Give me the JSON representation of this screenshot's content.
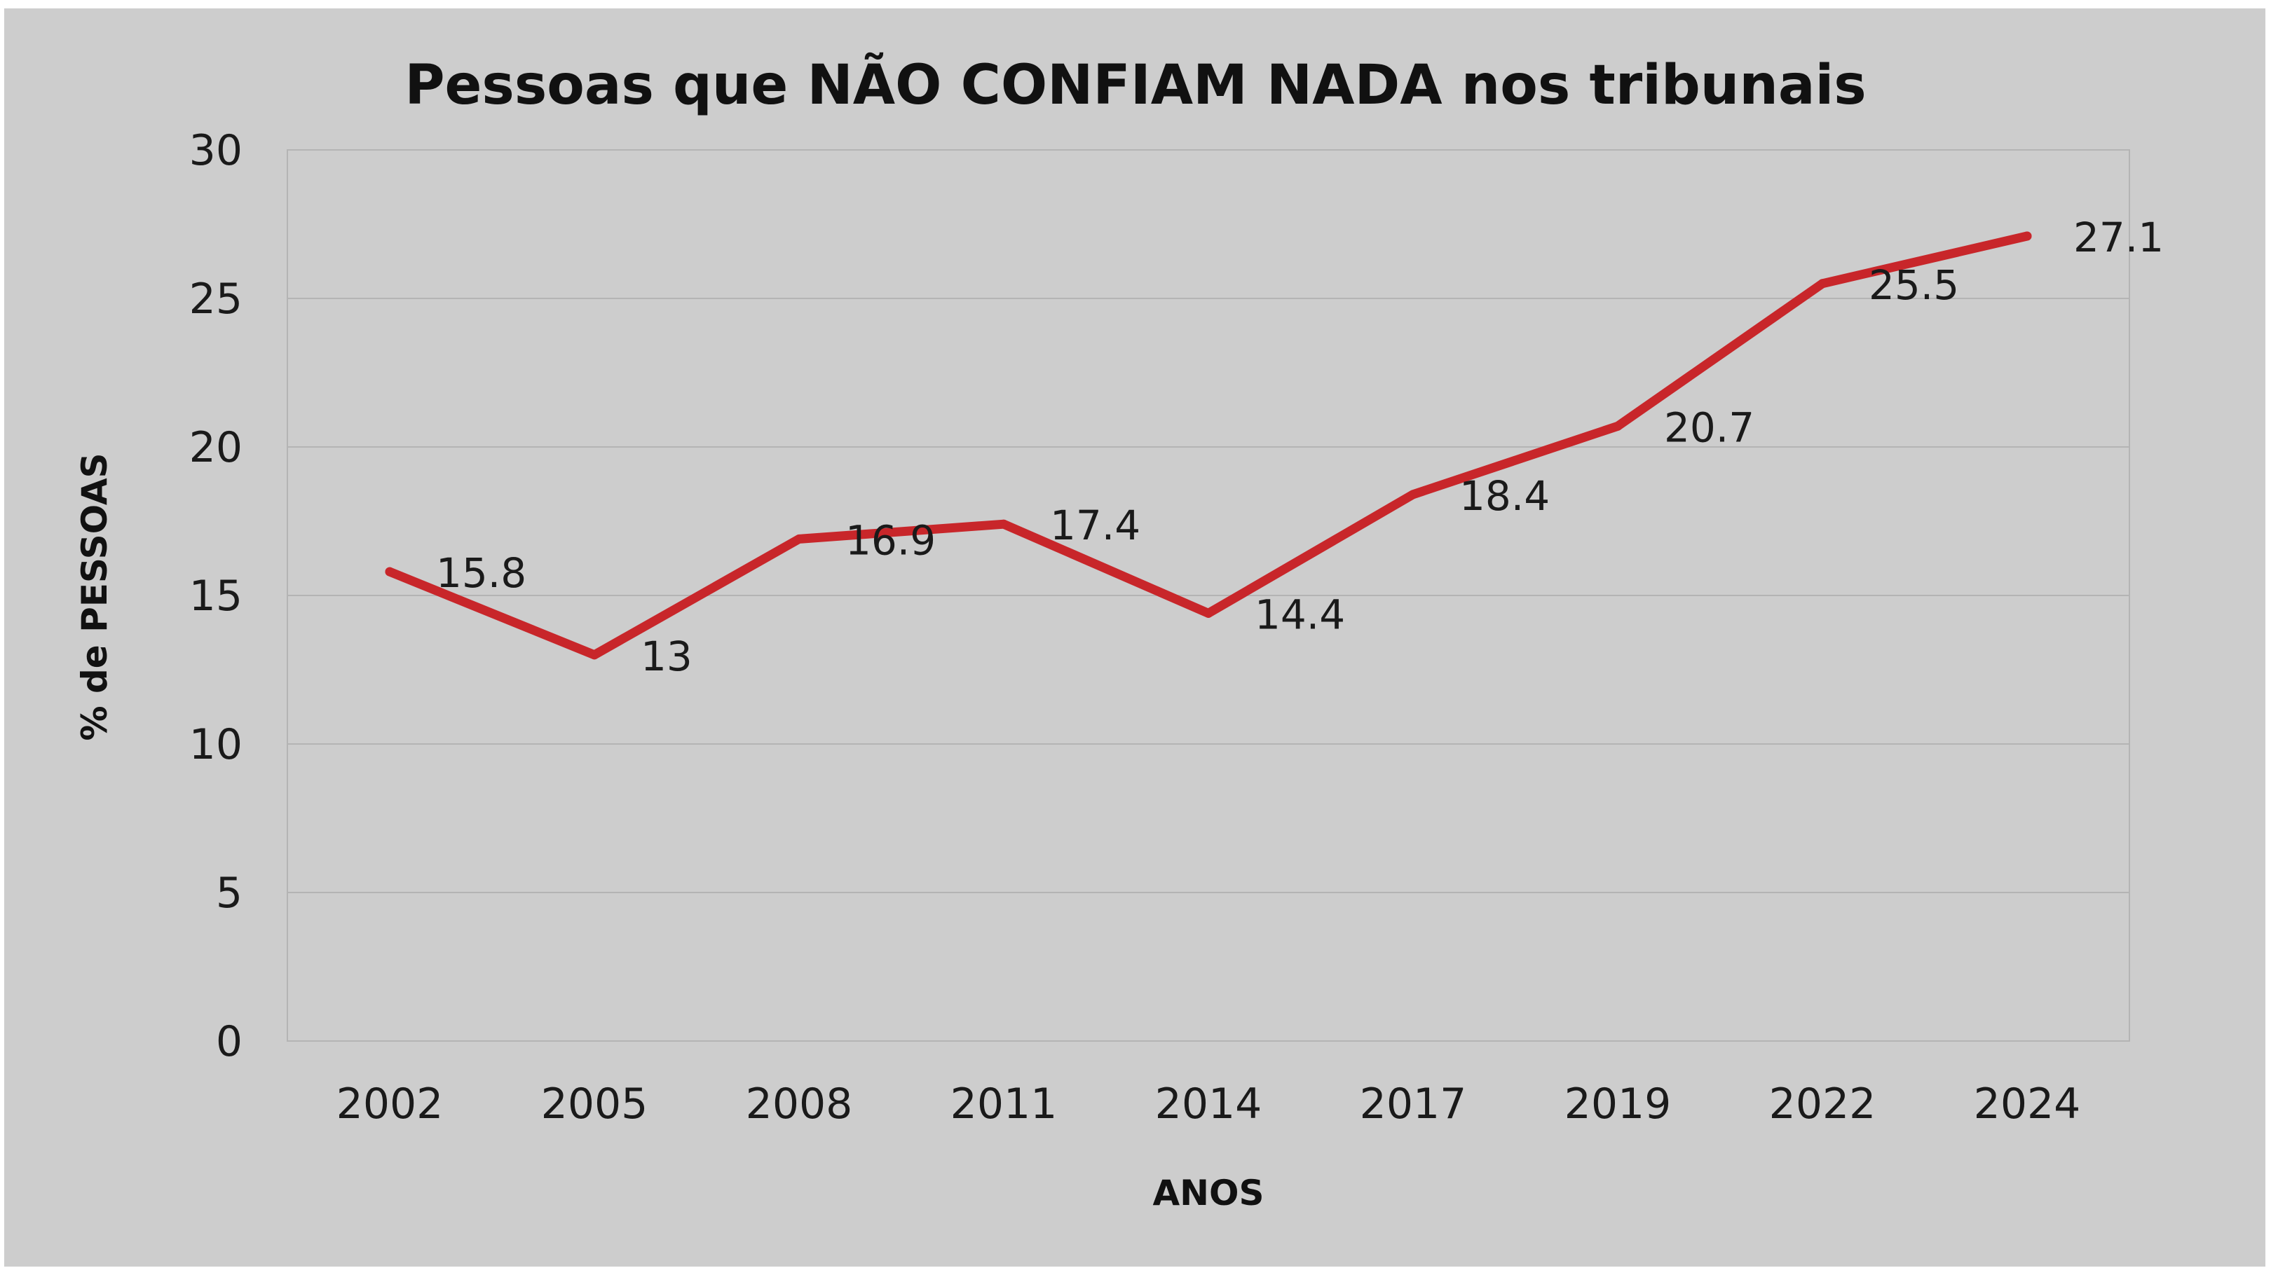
{
  "chart_data": {
    "type": "line",
    "title": "Pessoas que NÃO CONFIAM NADA nos tribunais",
    "xlabel": "ANOS",
    "ylabel": "% de PESSOAS",
    "categories": [
      "2002",
      "2005",
      "2008",
      "2011",
      "2014",
      "2017",
      "2019",
      "2022",
      "2024"
    ],
    "series": [
      {
        "values": [
          15.8,
          13,
          16.9,
          17.4,
          14.4,
          18.4,
          20.7,
          25.5,
          27.1
        ],
        "color": "#c8262a"
      }
    ],
    "data_labels": [
      "15.8",
      "13",
      "16.9",
      "17.4",
      "14.4",
      "18.4",
      "20.7",
      "25.5",
      "27.1"
    ],
    "ylim": [
      0,
      30
    ],
    "yticks": [
      "0",
      "5",
      "10",
      "15",
      "20",
      "25",
      "30"
    ],
    "grid": true,
    "legend": "none"
  }
}
